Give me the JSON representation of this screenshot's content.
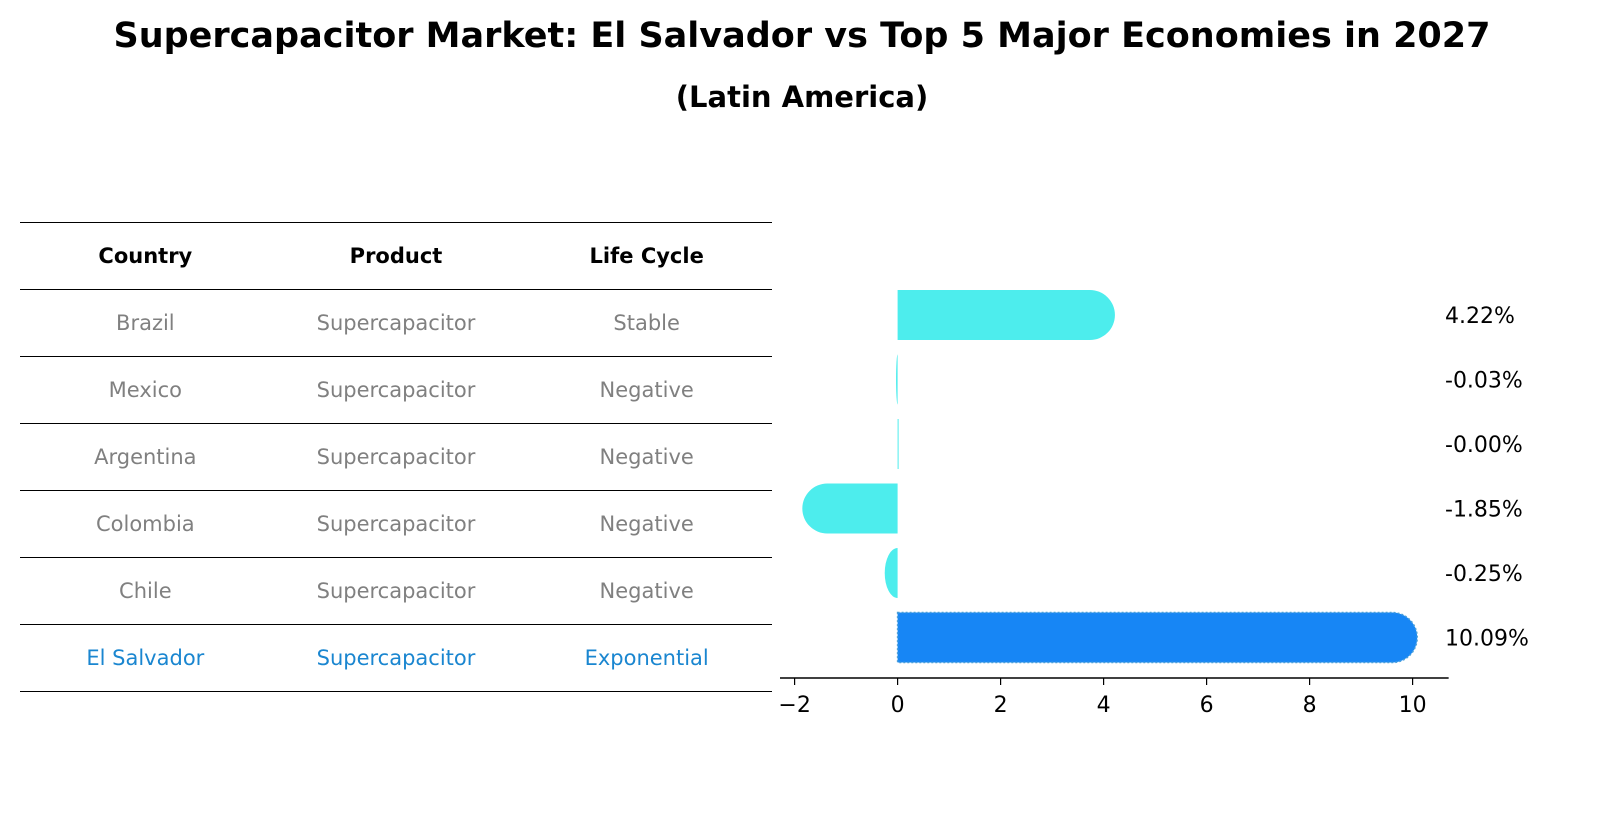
{
  "header": {
    "title": "Supercapacitor Market: El Salvador vs Top 5 Major Economies in 2027",
    "subtitle": "(Latin America)"
  },
  "table": {
    "columns": [
      "Country",
      "Product",
      "Life Cycle"
    ],
    "rows": [
      {
        "country": "Brazil",
        "product": "Supercapacitor",
        "life_cycle": "Stable"
      },
      {
        "country": "Mexico",
        "product": "Supercapacitor",
        "life_cycle": "Negative"
      },
      {
        "country": "Argentina",
        "product": "Supercapacitor",
        "life_cycle": "Negative"
      },
      {
        "country": "Colombia",
        "product": "Supercapacitor",
        "life_cycle": "Negative"
      },
      {
        "country": "Chile",
        "product": "Supercapacitor",
        "life_cycle": "Negative"
      },
      {
        "country": "El Salvador",
        "product": "Supercapacitor",
        "life_cycle": "Exponential"
      }
    ]
  },
  "colors": {
    "bar": "#4deded",
    "highlight_bar": "#1786f5",
    "highlight_text": "#1a86d0",
    "muted_text": "#808080"
  },
  "chart_data": {
    "type": "bar",
    "orientation": "horizontal",
    "categories": [
      "Brazil",
      "Mexico",
      "Argentina",
      "Colombia",
      "Chile",
      "El Salvador"
    ],
    "values": [
      4.22,
      -0.03,
      -0.0,
      -1.85,
      -0.25,
      10.09
    ],
    "value_labels": [
      "4.22%",
      "-0.03%",
      "-0.00%",
      "-1.85%",
      "-0.25%",
      "10.09%"
    ],
    "highlight": "El Salvador",
    "xticks": [
      -2,
      0,
      2,
      4,
      6,
      8,
      10
    ],
    "xtick_labels": [
      "−2",
      "0",
      "2",
      "4",
      "6",
      "8",
      "10"
    ],
    "xlim": [
      -2.4,
      10.7
    ]
  }
}
